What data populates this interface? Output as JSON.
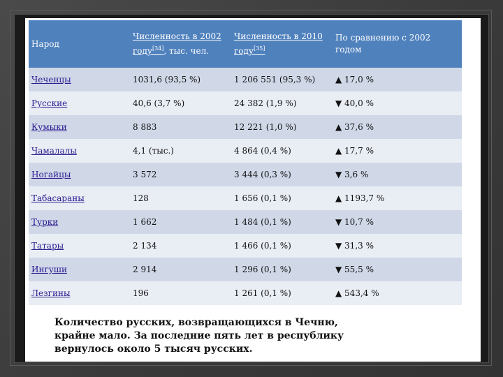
{
  "table": {
    "headers": [
      {
        "text": "Народ"
      },
      {
        "text": "Численность в 2002 году",
        "sup": "[34]",
        "tail": ", тыс. чел."
      },
      {
        "text": "Численность в 2010 году",
        "sup": "[35]"
      },
      {
        "text": "По сравнению с 2002 годом"
      }
    ],
    "rows": [
      [
        "Чеченцы",
        "1031,6 (93,5 %)",
        "1 206 551 (95,3 %)",
        "▲ 17,0 %"
      ],
      [
        "Русские",
        "40,6 (3,7 %)",
        "24 382 (1,9 %)",
        "▼ 40,0 %"
      ],
      [
        "Кумыки",
        "8 883",
        "12 221 (1,0 %)",
        "▲ 37,6 %"
      ],
      [
        "Чамалалы",
        "4,1 (тыс.)",
        "4 864 (0,4 %)",
        "▲ 17,7 %"
      ],
      [
        "Ногайцы",
        "3 572",
        "3 444 (0,3 %)",
        "▼ 3,6 %"
      ],
      [
        "Табасараны",
        "128",
        "1 656 (0,1 %)",
        "▲ 1193,7 %"
      ],
      [
        "Турки",
        "1 662",
        "1 484 (0,1 %)",
        "▼ 10,7 %"
      ],
      [
        "Татары",
        "2 134",
        "1 466 (0,1 %)",
        "▼ 31,3 %"
      ],
      [
        "Ингуши",
        "2 914",
        "1 296 (0,1 %)",
        "▼ 55,5 %"
      ],
      [
        "Лезгины",
        "196",
        "1 261 (0,1 %)",
        "▲ 543,4 %"
      ]
    ]
  },
  "caption": "Количество русских, возвращающихся в Чечню, крайне мало. За последние пять лет в республику вернулось около 5 тысяч русских.",
  "colors": {
    "header": "#4f81bd",
    "row_odd": "#d0d8e8",
    "row_even": "#e9edf4",
    "link": "#2b1a8f"
  }
}
